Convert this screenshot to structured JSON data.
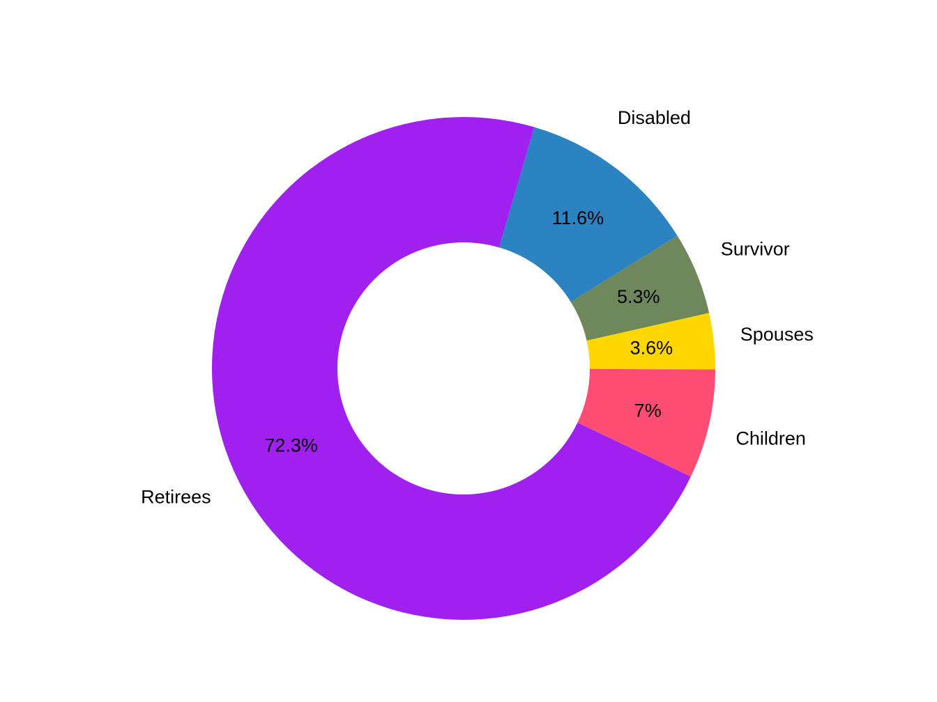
{
  "chart_data": {
    "type": "pie",
    "variant": "donut",
    "title": "",
    "start_angle_deg": 16.3,
    "direction": "clockwise",
    "legend": "none",
    "slices": [
      {
        "label": "Disabled",
        "value": 11.6,
        "value_label": "11.6%",
        "color": "#2C83C2"
      },
      {
        "label": "Survivor",
        "value": 5.3,
        "value_label": "5.3%",
        "color": "#6E875B"
      },
      {
        "label": "Spouses",
        "value": 3.6,
        "value_label": "3.6%",
        "color": "#FFD700"
      },
      {
        "label": "Children",
        "value": 7,
        "value_label": "7%",
        "color": "#FF4C72"
      },
      {
        "label": "Retirees",
        "value": 72.3,
        "value_label": "72.3%",
        "color": "#A020F0"
      }
    ]
  }
}
